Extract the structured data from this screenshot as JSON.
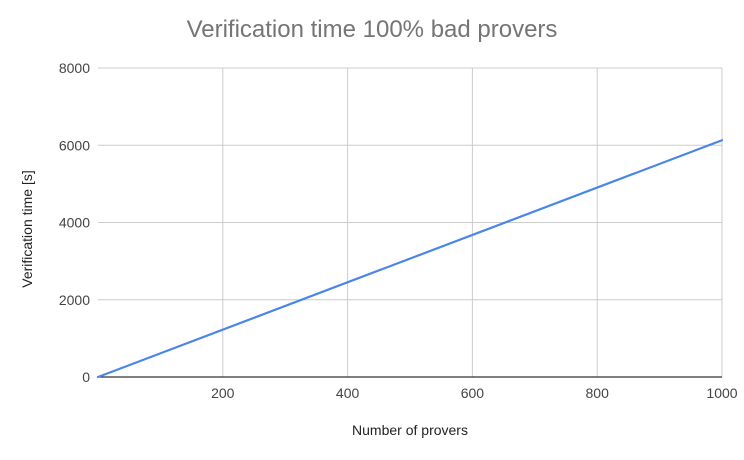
{
  "chart_data": {
    "type": "line",
    "title": "Verification time 100% bad provers",
    "xlabel": "Number of provers",
    "ylabel": "Verification time [s]",
    "xlim": [
      0,
      1000
    ],
    "ylim": [
      0,
      8000
    ],
    "xticks": [
      200,
      400,
      600,
      800,
      1000
    ],
    "yticks": [
      0,
      2000,
      4000,
      6000,
      8000
    ],
    "grid": true,
    "series": [
      {
        "color": "#4a86e8",
        "x": [
          0,
          1000
        ],
        "y": [
          0,
          6130
        ]
      }
    ]
  }
}
